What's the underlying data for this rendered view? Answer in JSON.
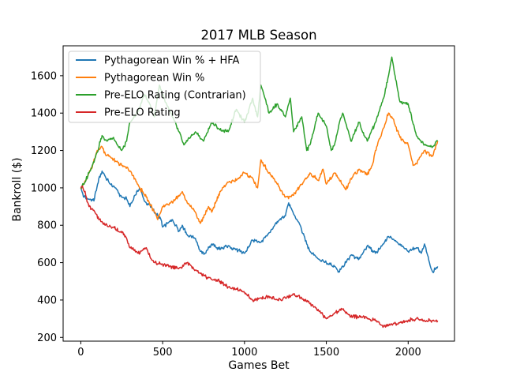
{
  "chart_data": {
    "type": "line",
    "title": "2017 MLB Season",
    "xlabel": "Games Bet",
    "ylabel": "Bankroll ($)",
    "xlim": [
      -108,
      2283
    ],
    "ylim": [
      180,
      1760
    ],
    "xticks": [
      0,
      500,
      1000,
      1500,
      2000
    ],
    "yticks": [
      200,
      400,
      600,
      800,
      1000,
      1200,
      1400,
      1600
    ],
    "grid": false,
    "legend": "top-left",
    "series": [
      {
        "name": "Pythagorean Win % + HFA",
        "color": "#1f77b4",
        "x": [
          0,
          20,
          50,
          80,
          110,
          130,
          150,
          180,
          210,
          250,
          280,
          300,
          330,
          360,
          380,
          400,
          430,
          460,
          490,
          500,
          530,
          560,
          600,
          620,
          650,
          700,
          730,
          760,
          800,
          850,
          900,
          950,
          1000,
          1050,
          1100,
          1150,
          1200,
          1250,
          1270,
          1300,
          1340,
          1380,
          1400,
          1450,
          1500,
          1550,
          1580,
          1620,
          1650,
          1700,
          1750,
          1800,
          1850,
          1880,
          1900,
          1950,
          2000,
          2050,
          2080,
          2100,
          2130,
          2150,
          2180
        ],
        "values": [
          1000,
          950,
          940,
          930,
          1050,
          1090,
          1060,
          1020,
          1000,
          950,
          940,
          900,
          960,
          1000,
          950,
          920,
          900,
          860,
          830,
          790,
          810,
          830,
          770,
          800,
          750,
          730,
          660,
          650,
          700,
          670,
          690,
          670,
          650,
          720,
          710,
          760,
          820,
          850,
          920,
          860,
          800,
          700,
          660,
          620,
          600,
          580,
          550,
          600,
          640,
          620,
          690,
          650,
          700,
          740,
          730,
          700,
          660,
          680,
          650,
          700,
          600,
          550,
          580
        ]
      },
      {
        "name": "Pythagorean Win %",
        "color": "#ff7f0e",
        "x": [
          0,
          20,
          50,
          70,
          100,
          130,
          150,
          170,
          200,
          250,
          290,
          330,
          360,
          400,
          450,
          470,
          500,
          550,
          600,
          620,
          650,
          700,
          730,
          750,
          780,
          800,
          850,
          900,
          950,
          1000,
          1050,
          1080,
          1100,
          1150,
          1200,
          1250,
          1300,
          1350,
          1400,
          1450,
          1480,
          1500,
          1550,
          1580,
          1620,
          1650,
          1700,
          1750,
          1780,
          1800,
          1850,
          1880,
          1900,
          1950,
          2000,
          2030,
          2050,
          2100,
          2150,
          2180
        ],
        "values": [
          1000,
          1020,
          1080,
          1110,
          1200,
          1220,
          1180,
          1170,
          1150,
          1120,
          1100,
          1050,
          1000,
          950,
          870,
          830,
          900,
          920,
          960,
          980,
          920,
          870,
          810,
          840,
          900,
          870,
          980,
          1030,
          1040,
          1080,
          1050,
          1000,
          1150,
          1080,
          1020,
          950,
          960,
          1020,
          1080,
          1040,
          1100,
          1020,
          1080,
          1040,
          990,
          1050,
          1100,
          1070,
          1120,
          1200,
          1320,
          1400,
          1380,
          1270,
          1230,
          1120,
          1130,
          1200,
          1170,
          1250
        ]
      },
      {
        "name": "Pre-ELO Rating (Contrarian)",
        "color": "#2ca02c",
        "x": [
          0,
          20,
          50,
          70,
          100,
          130,
          160,
          200,
          230,
          250,
          280,
          300,
          330,
          360,
          390,
          420,
          450,
          480,
          500,
          550,
          600,
          630,
          650,
          700,
          750,
          800,
          850,
          900,
          950,
          1000,
          1050,
          1080,
          1100,
          1130,
          1150,
          1200,
          1250,
          1280,
          1300,
          1350,
          1380,
          1400,
          1450,
          1500,
          1530,
          1550,
          1580,
          1600,
          1650,
          1700,
          1730,
          1750,
          1800,
          1850,
          1880,
          1900,
          1920,
          1950,
          2000,
          2050,
          2100,
          2150,
          2180
        ],
        "values": [
          1000,
          1020,
          1080,
          1120,
          1190,
          1280,
          1250,
          1270,
          1220,
          1200,
          1250,
          1350,
          1380,
          1430,
          1500,
          1450,
          1380,
          1550,
          1500,
          1400,
          1300,
          1230,
          1250,
          1300,
          1250,
          1350,
          1310,
          1300,
          1420,
          1350,
          1480,
          1380,
          1550,
          1470,
          1400,
          1450,
          1380,
          1480,
          1300,
          1380,
          1200,
          1230,
          1400,
          1330,
          1200,
          1230,
          1350,
          1400,
          1250,
          1350,
          1280,
          1250,
          1350,
          1480,
          1600,
          1700,
          1600,
          1460,
          1450,
          1280,
          1230,
          1220,
          1250
        ]
      },
      {
        "name": "Pre-ELO Rating",
        "color": "#d62728",
        "x": [
          0,
          10,
          30,
          50,
          80,
          110,
          150,
          200,
          250,
          280,
          300,
          330,
          350,
          400,
          430,
          450,
          500,
          550,
          600,
          650,
          700,
          750,
          800,
          850,
          900,
          950,
          1000,
          1050,
          1100,
          1150,
          1200,
          1250,
          1300,
          1350,
          1400,
          1450,
          1500,
          1550,
          1600,
          1650,
          1700,
          1750,
          1800,
          1850,
          1900,
          1950,
          2000,
          2050,
          2100,
          2150,
          2180
        ],
        "values": [
          1000,
          1010,
          960,
          900,
          880,
          830,
          800,
          790,
          760,
          730,
          680,
          670,
          650,
          680,
          620,
          600,
          590,
          580,
          570,
          600,
          560,
          530,
          510,
          500,
          470,
          460,
          440,
          400,
          410,
          420,
          400,
          410,
          430,
          410,
          380,
          350,
          300,
          330,
          350,
          310,
          310,
          300,
          290,
          260,
          270,
          280,
          290,
          300,
          290,
          290,
          290
        ]
      }
    ]
  }
}
